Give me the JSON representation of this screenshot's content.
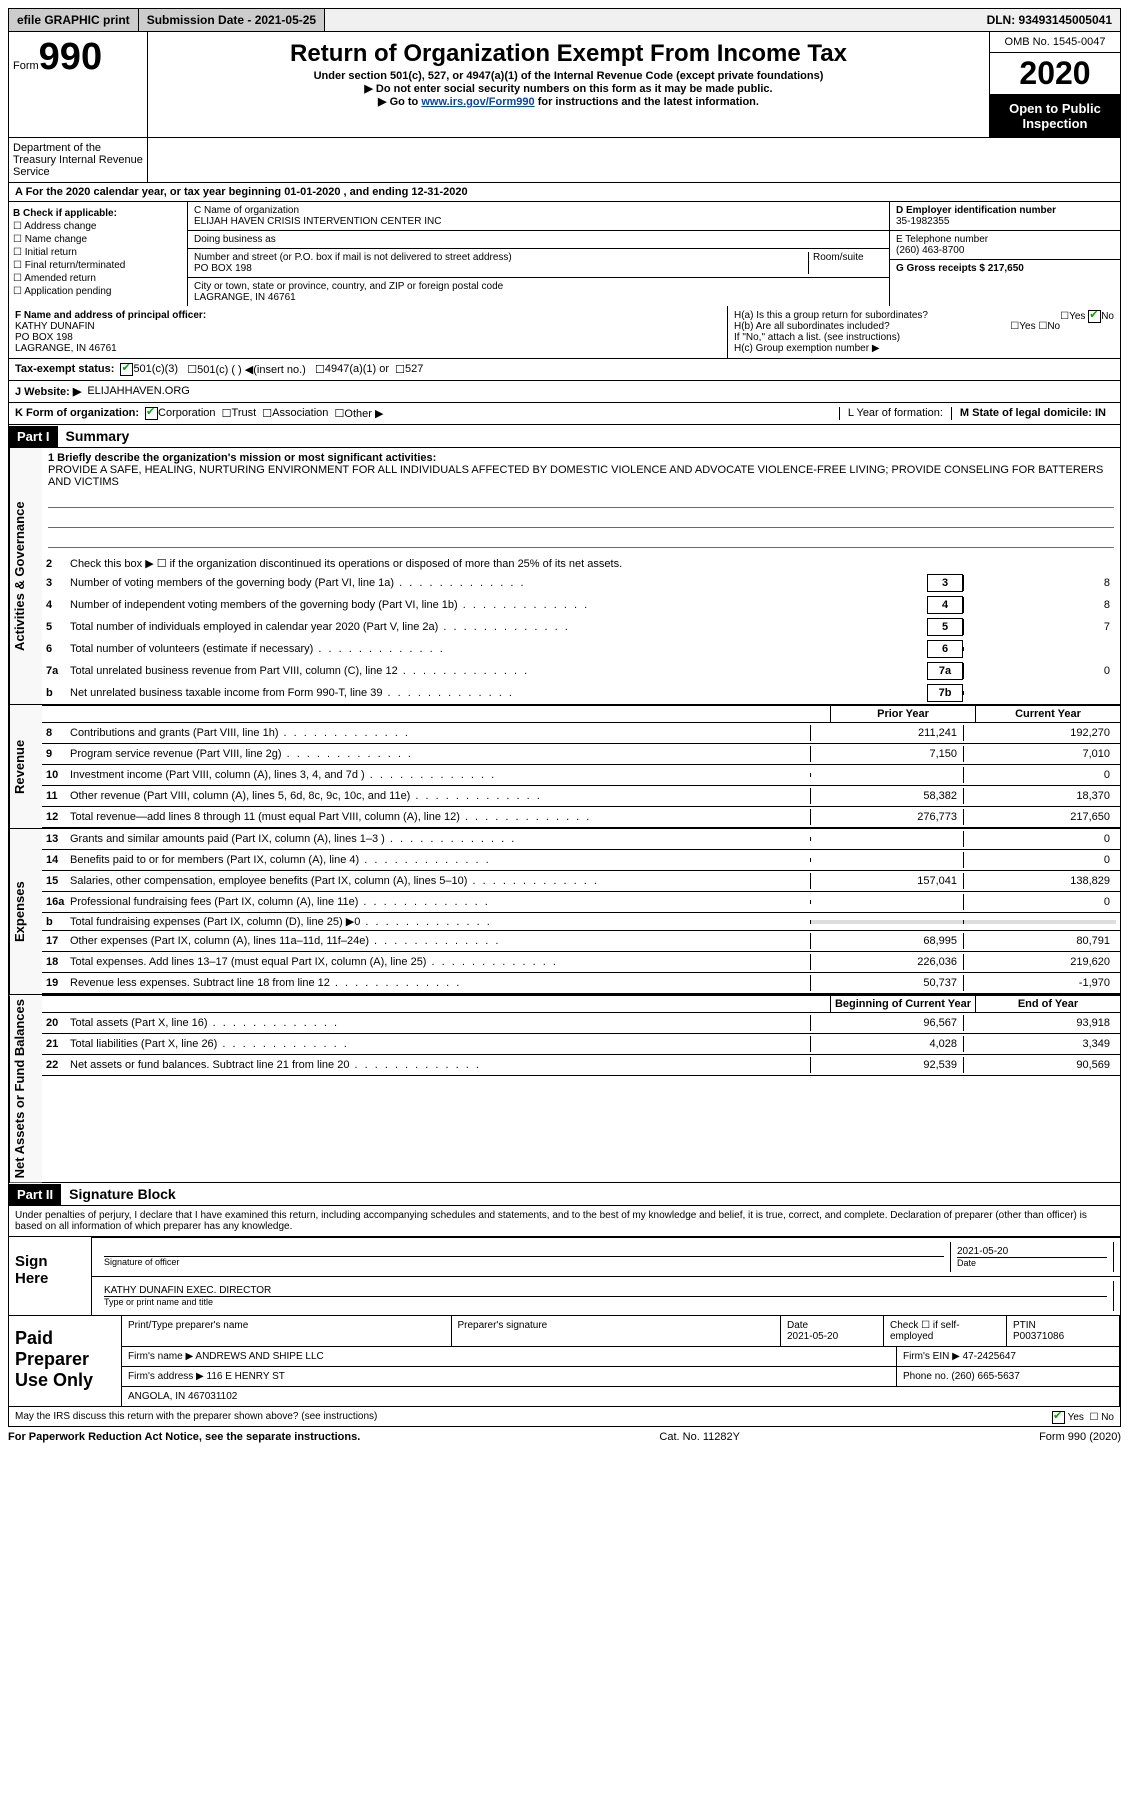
{
  "top": {
    "efile": "efile GRAPHIC print",
    "sub_label": "Submission Date - 2021-05-25",
    "dln": "DLN: 93493145005041"
  },
  "header": {
    "form_label": "Form",
    "form_number": "990",
    "title": "Return of Organization Exempt From Income Tax",
    "sub1": "Under section 501(c), 527, or 4947(a)(1) of the Internal Revenue Code (except private foundations)",
    "sub2": "▶ Do not enter social security numbers on this form as it may be made public.",
    "sub3_pre": "▶ Go to ",
    "sub3_link": "www.irs.gov/Form990",
    "sub3_post": " for instructions and the latest information.",
    "omb": "OMB No. 1545-0047",
    "year": "2020",
    "open": "Open to Public Inspection",
    "dept": "Department of the Treasury Internal Revenue Service"
  },
  "period": "A For the 2020 calendar year, or tax year beginning 01-01-2020    , and ending 12-31-2020",
  "b": {
    "label": "B Check if applicable:",
    "items": [
      "Address change",
      "Name change",
      "Initial return",
      "Final return/terminated",
      "Amended return",
      "Application pending"
    ]
  },
  "c": {
    "name_label": "C Name of organization",
    "name": "ELIJAH HAVEN CRISIS INTERVENTION CENTER INC",
    "dba_label": "Doing business as",
    "addr_label": "Number and street (or P.O. box if mail is not delivered to street address)",
    "room_label": "Room/suite",
    "addr": "PO BOX 198",
    "city_label": "City or town, state or province, country, and ZIP or foreign postal code",
    "city": "LAGRANGE, IN  46761"
  },
  "d": {
    "ein_label": "D Employer identification number",
    "ein": "35-1982355",
    "phone_label": "E Telephone number",
    "phone": "(260) 463-8700",
    "gross_label": "G Gross receipts $ 217,650"
  },
  "f": {
    "label": "F  Name and address of principal officer:",
    "name": "KATHY DUNAFIN",
    "addr": "PO BOX 198",
    "city": "LAGRANGE, IN  46761"
  },
  "h": {
    "a": "H(a)  Is this a group return for subordinates?",
    "a_yes": "Yes",
    "a_no": "No",
    "b": "H(b)  Are all subordinates included?",
    "b_yes": "Yes",
    "b_no": "No",
    "note": "If \"No,\" attach a list. (see instructions)",
    "c": "H(c)  Group exemption number ▶"
  },
  "tax_status": {
    "label": "Tax-exempt status:",
    "opt1": "501(c)(3)",
    "opt2": "501(c) (  ) ◀(insert no.)",
    "opt3": "4947(a)(1) or",
    "opt4": "527"
  },
  "website": {
    "label": "J   Website: ▶",
    "value": "ELIJAHHAVEN.ORG"
  },
  "row_k": {
    "label": "K Form of organization:",
    "opts": [
      "Corporation",
      "Trust",
      "Association",
      "Other ▶"
    ],
    "l_label": "L Year of formation:",
    "m_label": "M State of legal domicile: IN"
  },
  "part1": {
    "header": "Part I",
    "title": "Summary"
  },
  "mission": {
    "label": "1 Briefly describe the organization's mission or most significant activities:",
    "text": "PROVIDE A SAFE, HEALING, NURTURING ENVIRONMENT FOR ALL INDIVIDUALS AFFECTED BY DOMESTIC VIOLENCE AND ADVOCATE VIOLENCE-FREE LIVING; PROVIDE CONSELING FOR BATTERERS AND VICTIMS"
  },
  "gov_lines": [
    {
      "n": "2",
      "d": "Check this box ▶ ☐  if the organization discontinued its operations or disposed of more than 25% of its net assets."
    },
    {
      "n": "3",
      "d": "Number of voting members of the governing body (Part VI, line 1a)",
      "box": "3",
      "v": "8"
    },
    {
      "n": "4",
      "d": "Number of independent voting members of the governing body (Part VI, line 1b)",
      "box": "4",
      "v": "8"
    },
    {
      "n": "5",
      "d": "Total number of individuals employed in calendar year 2020 (Part V, line 2a)",
      "box": "5",
      "v": "7"
    },
    {
      "n": "6",
      "d": "Total number of volunteers (estimate if necessary)",
      "box": "6",
      "v": ""
    },
    {
      "n": "7a",
      "d": "Total unrelated business revenue from Part VIII, column (C), line 12",
      "box": "7a",
      "v": "0"
    },
    {
      "n": "b",
      "d": "Net unrelated business taxable income from Form 990-T, line 39",
      "box": "7b",
      "v": ""
    }
  ],
  "th": {
    "prior": "Prior Year",
    "current": "Current Year"
  },
  "rev_lines": [
    {
      "n": "8",
      "d": "Contributions and grants (Part VIII, line 1h)",
      "p": "211,241",
      "c": "192,270"
    },
    {
      "n": "9",
      "d": "Program service revenue (Part VIII, line 2g)",
      "p": "7,150",
      "c": "7,010"
    },
    {
      "n": "10",
      "d": "Investment income (Part VIII, column (A), lines 3, 4, and 7d )",
      "p": "",
      "c": "0"
    },
    {
      "n": "11",
      "d": "Other revenue (Part VIII, column (A), lines 5, 6d, 8c, 9c, 10c, and 11e)",
      "p": "58,382",
      "c": "18,370"
    },
    {
      "n": "12",
      "d": "Total revenue—add lines 8 through 11 (must equal Part VIII, column (A), line 12)",
      "p": "276,773",
      "c": "217,650"
    }
  ],
  "exp_lines": [
    {
      "n": "13",
      "d": "Grants and similar amounts paid (Part IX, column (A), lines 1–3 )",
      "p": "",
      "c": "0"
    },
    {
      "n": "14",
      "d": "Benefits paid to or for members (Part IX, column (A), line 4)",
      "p": "",
      "c": "0"
    },
    {
      "n": "15",
      "d": "Salaries, other compensation, employee benefits (Part IX, column (A), lines 5–10)",
      "p": "157,041",
      "c": "138,829"
    },
    {
      "n": "16a",
      "d": "Professional fundraising fees (Part IX, column (A), line 11e)",
      "p": "",
      "c": "0"
    },
    {
      "n": "b",
      "d": "Total fundraising expenses (Part IX, column (D), line 25) ▶0",
      "p": "shaded",
      "c": "shaded"
    },
    {
      "n": "17",
      "d": "Other expenses (Part IX, column (A), lines 11a–11d, 11f–24e)",
      "p": "68,995",
      "c": "80,791"
    },
    {
      "n": "18",
      "d": "Total expenses. Add lines 13–17 (must equal Part IX, column (A), line 25)",
      "p": "226,036",
      "c": "219,620"
    },
    {
      "n": "19",
      "d": "Revenue less expenses. Subtract line 18 from line 12",
      "p": "50,737",
      "c": "-1,970"
    }
  ],
  "na_th": {
    "beg": "Beginning of Current Year",
    "end": "End of Year"
  },
  "na_lines": [
    {
      "n": "20",
      "d": "Total assets (Part X, line 16)",
      "p": "96,567",
      "c": "93,918"
    },
    {
      "n": "21",
      "d": "Total liabilities (Part X, line 26)",
      "p": "4,028",
      "c": "3,349"
    },
    {
      "n": "22",
      "d": "Net assets or fund balances. Subtract line 21 from line 20",
      "p": "92,539",
      "c": "90,569"
    }
  ],
  "part2": {
    "header": "Part II",
    "title": "Signature Block"
  },
  "sig": {
    "decl": "Under penalties of perjury, I declare that I have examined this return, including accompanying schedules and statements, and to the best of my knowledge and belief, it is true, correct, and complete. Declaration of preparer (other than officer) is based on all information of which preparer has any knowledge.",
    "sign_label": "Sign Here",
    "off_label": "Signature of officer",
    "date_label": "Date",
    "date": "2021-05-20",
    "name": "KATHY DUNAFIN  EXEC. DIRECTOR",
    "name_label": "Type or print name and title"
  },
  "prep": {
    "label": "Paid Preparer Use Only",
    "c1": "Print/Type preparer's name",
    "c2": "Preparer's signature",
    "c3": "Date",
    "c3v": "2021-05-20",
    "c4": "Check ☐ if self-employed",
    "c5": "PTIN",
    "c5v": "P00371086",
    "firm_label": "Firm's name    ▶",
    "firm": "ANDREWS AND SHIPE LLC",
    "firm_ein_label": "Firm's EIN ▶",
    "firm_ein": "47-2425647",
    "addr_label": "Firm's address ▶",
    "addr1": "116 E HENRY ST",
    "addr2": "ANGOLA, IN  467031102",
    "phone_label": "Phone no.",
    "phone": "(260) 665-5637",
    "discuss": "May the IRS discuss this return with the preparer shown above? (see instructions)",
    "yes": "Yes",
    "no": "No"
  },
  "footer": {
    "left": "For Paperwork Reduction Act Notice, see the separate instructions.",
    "mid": "Cat. No. 11282Y",
    "right": "Form 990 (2020)"
  },
  "tabs": {
    "gov": "Activities & Governance",
    "rev": "Revenue",
    "exp": "Expenses",
    "na": "Net Assets or Fund Balances"
  }
}
